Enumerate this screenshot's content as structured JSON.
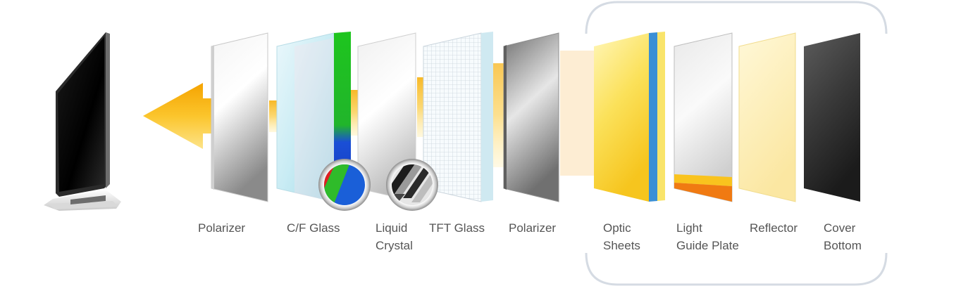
{
  "diagram": {
    "layers": [
      {
        "id": "polarizer-front",
        "lines": [
          "Polarizer"
        ]
      },
      {
        "id": "cf-glass",
        "lines": [
          "C/F Glass"
        ]
      },
      {
        "id": "liquid-crystal",
        "lines": [
          "Liquid",
          "Crystal"
        ]
      },
      {
        "id": "tft-glass",
        "lines": [
          "TFT Glass"
        ]
      },
      {
        "id": "polarizer-rear",
        "lines": [
          "Polarizer"
        ]
      },
      {
        "id": "optic-sheets",
        "lines": [
          "Optic",
          "Sheets"
        ]
      },
      {
        "id": "light-guide-plate",
        "lines": [
          "Light",
          "Guide Plate"
        ]
      },
      {
        "id": "reflector",
        "lines": [
          "Reflector"
        ]
      },
      {
        "id": "cover-bottom",
        "lines": [
          "Cover",
          "Bottom"
        ]
      }
    ],
    "colors": {
      "label": "#555555",
      "bracket": "#d5dbe3",
      "light_beam": "#f7b51c",
      "arrow_top": "#fdd64a",
      "arrow_bottom": "#f5a300",
      "rgb_red": "#e0201f",
      "rgb_green": "#2fbb2a",
      "rgb_blue": "#1a5fd8"
    },
    "icons": [
      "tv-icon",
      "rgb-filter-icon",
      "liquid-crystal-icon",
      "light-arrow-icon"
    ]
  }
}
